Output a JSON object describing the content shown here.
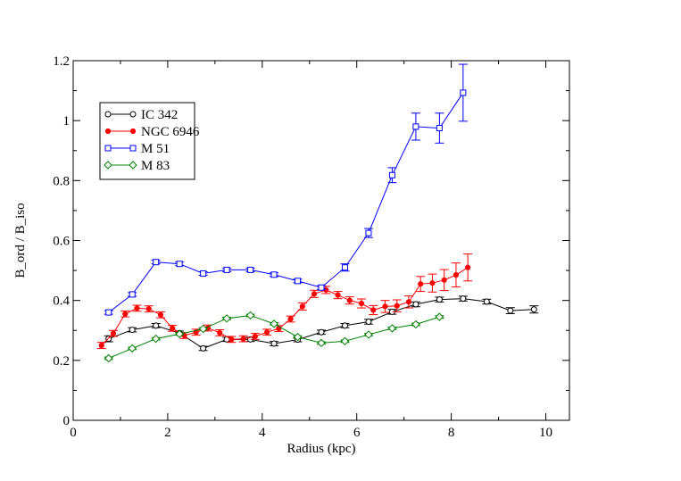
{
  "chart_data": {
    "type": "line",
    "title": "",
    "xlabel": "Radius (kpc)",
    "ylabel": "B_ord / B_iso",
    "xlim": [
      0,
      10.5
    ],
    "ylim": [
      0,
      1.2
    ],
    "xticks": [
      0,
      2,
      4,
      6,
      8,
      10
    ],
    "yticks": [
      0,
      0.2,
      0.4,
      0.6,
      0.8,
      1,
      1.2
    ],
    "xtick_labels": [
      "0",
      "2",
      "4",
      "6",
      "8",
      "10"
    ],
    "ytick_labels": [
      "0",
      "0.2",
      "0.4",
      "0.6",
      "0.8",
      "1",
      "1.2"
    ],
    "grid": false,
    "legend_position": "top-left",
    "series": [
      {
        "name": "IC 342",
        "color": "#000000",
        "marker": "circle",
        "x": [
          0.75,
          1.25,
          1.75,
          2.25,
          2.75,
          3.25,
          3.75,
          4.25,
          4.75,
          5.25,
          5.75,
          6.25,
          6.75,
          7.25,
          7.75,
          8.25,
          8.75,
          9.25,
          9.75
        ],
        "y": [
          0.272,
          0.302,
          0.316,
          0.291,
          0.24,
          0.27,
          0.27,
          0.256,
          0.269,
          0.294,
          0.316,
          0.329,
          0.362,
          0.387,
          0.403,
          0.406,
          0.396,
          0.366,
          0.37
        ],
        "err": [
          0.01,
          0.007,
          0.007,
          0.007,
          0.007,
          0.007,
          0.007,
          0.007,
          0.007,
          0.007,
          0.007,
          0.008,
          0.008,
          0.008,
          0.008,
          0.008,
          0.008,
          0.01,
          0.012
        ]
      },
      {
        "name": "NGC 6946",
        "color": "#ff0000",
        "marker": "filled-circle",
        "x": [
          0.6,
          0.85,
          1.1,
          1.35,
          1.6,
          1.85,
          2.1,
          2.35,
          2.6,
          2.85,
          3.1,
          3.35,
          3.6,
          3.85,
          4.1,
          4.35,
          4.6,
          4.85,
          5.1,
          5.35,
          5.6,
          5.85,
          6.1,
          6.35,
          6.6,
          6.85,
          7.1,
          7.35,
          7.6,
          7.85,
          8.1,
          8.35
        ],
        "y": [
          0.25,
          0.29,
          0.355,
          0.374,
          0.372,
          0.352,
          0.307,
          0.283,
          0.294,
          0.308,
          0.292,
          0.27,
          0.272,
          0.28,
          0.294,
          0.306,
          0.338,
          0.38,
          0.422,
          0.435,
          0.418,
          0.4,
          0.39,
          0.368,
          0.38,
          0.382,
          0.395,
          0.455,
          0.458,
          0.468,
          0.485,
          0.51
        ],
        "err": [
          0.01,
          0.01,
          0.01,
          0.01,
          0.01,
          0.01,
          0.01,
          0.01,
          0.01,
          0.01,
          0.01,
          0.01,
          0.01,
          0.01,
          0.01,
          0.01,
          0.01,
          0.012,
          0.012,
          0.012,
          0.012,
          0.012,
          0.015,
          0.015,
          0.02,
          0.02,
          0.02,
          0.025,
          0.03,
          0.035,
          0.04,
          0.045
        ]
      },
      {
        "name": "M 51",
        "color": "#0000ff",
        "marker": "square",
        "x": [
          0.75,
          1.25,
          1.75,
          2.25,
          2.75,
          3.25,
          3.75,
          4.25,
          4.75,
          5.25,
          5.75,
          6.25,
          6.75,
          7.25,
          7.75,
          8.25
        ],
        "y": [
          0.36,
          0.42,
          0.528,
          0.522,
          0.49,
          0.502,
          0.502,
          0.486,
          0.465,
          0.443,
          0.51,
          0.625,
          0.818,
          0.98,
          0.975,
          1.093
        ],
        "err": [
          0.006,
          0.006,
          0.006,
          0.006,
          0.006,
          0.006,
          0.006,
          0.006,
          0.006,
          0.006,
          0.012,
          0.015,
          0.025,
          0.045,
          0.05,
          0.095
        ]
      },
      {
        "name": "M 83",
        "color": "#008000",
        "marker": "diamond",
        "x": [
          0.75,
          1.25,
          1.75,
          2.25,
          2.75,
          3.25,
          3.75,
          4.25,
          4.75,
          5.25,
          5.75,
          6.25,
          6.75,
          7.25,
          7.75
        ],
        "y": [
          0.207,
          0.24,
          0.272,
          0.288,
          0.305,
          0.34,
          0.35,
          0.322,
          0.278,
          0.258,
          0.264,
          0.286,
          0.307,
          0.32,
          0.345
        ],
        "err": [
          0.004,
          0.004,
          0.004,
          0.004,
          0.004,
          0.004,
          0.004,
          0.004,
          0.004,
          0.004,
          0.004,
          0.004,
          0.004,
          0.004,
          0.004
        ]
      }
    ]
  }
}
